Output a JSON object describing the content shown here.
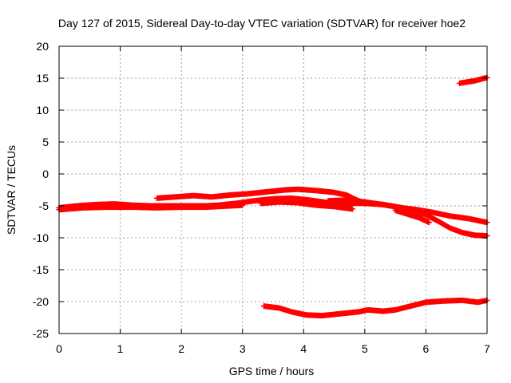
{
  "chart_data": {
    "type": "scatter",
    "title": "Day 127 of 2015, Sidereal Day-to-day VTEC variation (SDTVAR) for receiver hoe2",
    "xlabel": "GPS time / hours",
    "ylabel": "SDTVAR / TECUs",
    "xlim": [
      0,
      7
    ],
    "ylim": [
      -25,
      20
    ],
    "xticks": [
      0,
      1,
      2,
      3,
      4,
      5,
      6,
      7
    ],
    "yticks": [
      20,
      15,
      10,
      5,
      0,
      -5,
      -10,
      -15,
      -20,
      -25
    ],
    "grid": true,
    "marker": "plus",
    "colors": {
      "series": "#ff0000",
      "grid": "#a0a0a0",
      "axis": "#000000"
    },
    "series": [
      {
        "points": [
          [
            0,
            -5.3
          ],
          [
            0.3,
            -5.0
          ],
          [
            0.6,
            -4.8
          ],
          [
            0.9,
            -4.7
          ],
          [
            1.2,
            -4.9
          ],
          [
            1.5,
            -5.0
          ],
          [
            1.8,
            -5.0
          ],
          [
            2.1,
            -5.0
          ],
          [
            2.4,
            -5.0
          ],
          [
            2.6,
            -4.9
          ],
          [
            2.9,
            -4.6
          ],
          [
            3.2,
            -4.2
          ],
          [
            3.5,
            -3.9
          ],
          [
            3.8,
            -3.8
          ],
          [
            4.1,
            -4.1
          ],
          [
            4.4,
            -4.5
          ],
          [
            4.7,
            -4.6
          ],
          [
            5.0,
            -4.6
          ],
          [
            5.3,
            -4.8
          ],
          [
            5.6,
            -5.3
          ],
          [
            5.85,
            -5.6
          ],
          [
            6.1,
            -6.0
          ],
          [
            6.4,
            -6.6
          ],
          [
            6.7,
            -7.0
          ],
          [
            7.0,
            -7.6
          ]
        ]
      },
      {
        "points": [
          [
            0,
            -5.6
          ],
          [
            0.4,
            -5.3
          ],
          [
            0.8,
            -5.2
          ],
          [
            1.2,
            -5.2
          ],
          [
            1.6,
            -5.3
          ],
          [
            2.0,
            -5.2
          ],
          [
            2.4,
            -5.2
          ],
          [
            2.8,
            -5.0
          ],
          [
            3.0,
            -4.9
          ]
        ]
      },
      {
        "points": [
          [
            1.6,
            -3.8
          ],
          [
            1.9,
            -3.6
          ],
          [
            2.2,
            -3.4
          ],
          [
            2.5,
            -3.6
          ],
          [
            2.8,
            -3.3
          ],
          [
            3.1,
            -3.1
          ],
          [
            3.4,
            -2.8
          ],
          [
            3.7,
            -2.5
          ],
          [
            3.9,
            -2.4
          ],
          [
            4.2,
            -2.6
          ],
          [
            4.5,
            -2.9
          ],
          [
            4.7,
            -3.3
          ],
          [
            4.85,
            -4.0
          ],
          [
            5.0,
            -4.6
          ]
        ]
      },
      {
        "points": [
          [
            3.3,
            -4.6
          ],
          [
            3.6,
            -4.4
          ],
          [
            3.9,
            -4.5
          ],
          [
            4.2,
            -4.9
          ],
          [
            4.5,
            -5.1
          ],
          [
            4.8,
            -5.5
          ]
        ]
      },
      {
        "points": [
          [
            4.4,
            -4.2
          ],
          [
            4.7,
            -4.1
          ],
          [
            5.0,
            -4.4
          ],
          [
            5.3,
            -4.8
          ],
          [
            5.6,
            -5.3
          ],
          [
            5.8,
            -5.8
          ],
          [
            6.0,
            -6.4
          ],
          [
            6.2,
            -7.4
          ],
          [
            6.4,
            -8.5
          ],
          [
            6.6,
            -9.2
          ],
          [
            6.8,
            -9.6
          ],
          [
            7.0,
            -9.7
          ]
        ]
      },
      {
        "points": [
          [
            5.5,
            -5.7
          ],
          [
            5.7,
            -6.3
          ],
          [
            5.9,
            -6.9
          ],
          [
            6.05,
            -7.6
          ]
        ]
      },
      {
        "points": [
          [
            6.55,
            14.2
          ],
          [
            6.8,
            14.6
          ],
          [
            7.0,
            15.1
          ]
        ]
      },
      {
        "points": [
          [
            3.35,
            -20.7
          ],
          [
            3.6,
            -21.0
          ],
          [
            3.8,
            -21.6
          ],
          [
            4.05,
            -22.1
          ],
          [
            4.3,
            -22.2
          ],
          [
            4.6,
            -21.9
          ],
          [
            4.9,
            -21.6
          ],
          [
            5.05,
            -21.3
          ],
          [
            5.3,
            -21.5
          ],
          [
            5.5,
            -21.3
          ],
          [
            5.75,
            -20.7
          ],
          [
            6.0,
            -20.1
          ],
          [
            6.3,
            -19.9
          ],
          [
            6.6,
            -19.8
          ],
          [
            6.85,
            -20.1
          ],
          [
            7.0,
            -19.8
          ]
        ]
      }
    ]
  }
}
